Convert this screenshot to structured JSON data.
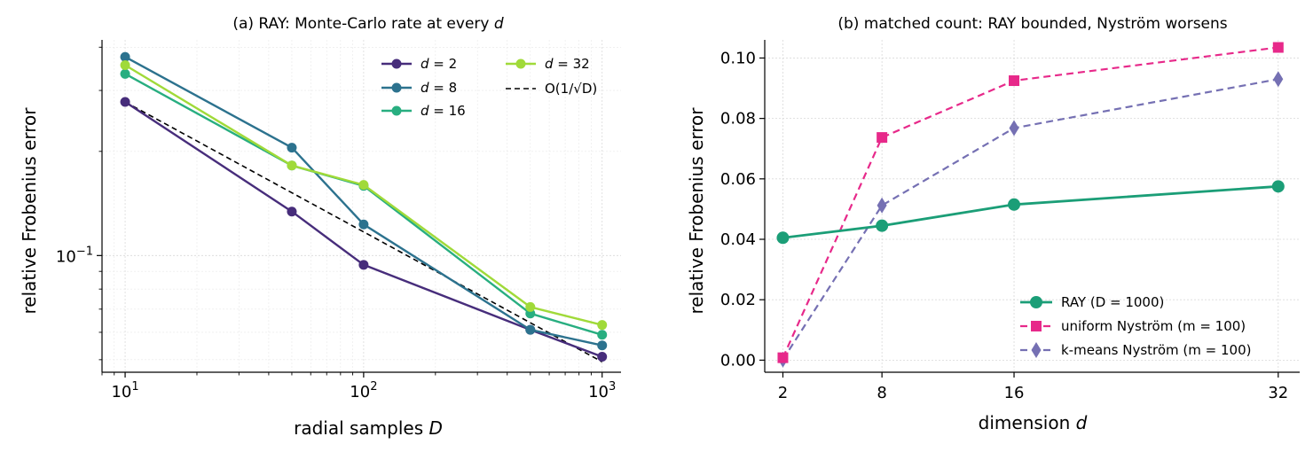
{
  "chart_data": [
    {
      "type": "line",
      "title": "(a) RAY: Monte-Carlo rate at every ",
      "title_var": "d",
      "xlabel": "radial samples ",
      "xlabel_var": "D",
      "ylabel": "relative Frobenius error",
      "xscale": "log",
      "yscale": "log",
      "xlim": [
        8,
        1200
      ],
      "ylim": [
        0.046,
        0.42
      ],
      "x_ticks": [
        {
          "value": 10,
          "base": "10",
          "exp": "1"
        },
        {
          "value": 100,
          "base": "10",
          "exp": "2"
        },
        {
          "value": 1000,
          "base": "10",
          "exp": "3"
        }
      ],
      "y_ticks": [
        {
          "value": 0.1,
          "base": "10",
          "exp": "−1"
        }
      ],
      "grid": true,
      "legend_position": "top-right",
      "x": [
        10,
        50,
        100,
        500,
        1000
      ],
      "series": [
        {
          "name": "d = 2",
          "color": "#472d7b",
          "values": [
            0.278,
            0.134,
            0.094,
            0.061,
            0.051
          ]
        },
        {
          "name": "d = 8",
          "color": "#2c728e",
          "values": [
            0.375,
            0.205,
            0.123,
            0.061,
            0.055
          ]
        },
        {
          "name": "d = 16",
          "color": "#28ae80",
          "values": [
            0.335,
            0.182,
            0.159,
            0.068,
            0.059
          ]
        },
        {
          "name": "d = 32",
          "color": "#a0da39",
          "values": [
            0.355,
            0.182,
            0.16,
            0.071,
            0.063
          ]
        }
      ],
      "reference": {
        "name": "O(1/√D)",
        "color": "#000000",
        "x": [
          10,
          1000
        ],
        "values": [
          0.278,
          0.0493
        ]
      }
    },
    {
      "type": "line",
      "title": "(b) matched count: RAY bounded, Nyström worsens",
      "xlabel": "dimension ",
      "xlabel_var": "d",
      "ylabel": "relative Frobenius error",
      "xlim": [
        0.9,
        33.3
      ],
      "ylim": [
        -0.004,
        0.106
      ],
      "x_ticks": [
        2,
        8,
        16,
        32
      ],
      "y_ticks": [
        "0.00",
        "0.02",
        "0.04",
        "0.06",
        "0.08",
        "0.10"
      ],
      "grid": true,
      "legend_position": "bottom-right",
      "x": [
        2,
        8,
        16,
        32
      ],
      "series": [
        {
          "name": "RAY (D = 1000)",
          "color": "#1b9e77",
          "marker": "circle",
          "dash": false,
          "values": [
            0.0405,
            0.0445,
            0.0515,
            0.0575
          ]
        },
        {
          "name": "uniform Nyström (m = 100)",
          "color": "#e7298a",
          "marker": "square",
          "dash": true,
          "values": [
            0.0008,
            0.0737,
            0.0925,
            0.1035
          ]
        },
        {
          "name": "k-means Nyström (m = 100)",
          "color": "#7570b3",
          "marker": "diamond",
          "dash": true,
          "values": [
            0.0002,
            0.0512,
            0.0768,
            0.093
          ]
        }
      ]
    }
  ]
}
